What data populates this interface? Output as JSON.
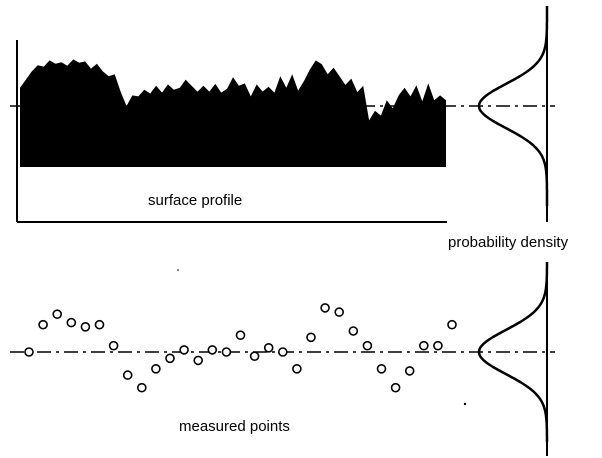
{
  "labels": {
    "surface_profile": "surface profile",
    "probability_density": "probability density",
    "measured_points": "measured points"
  },
  "colors": {
    "ink": "#000000",
    "paper": "#ffffff"
  },
  "profile": {
    "heights": [
      0.38,
      0.55,
      0.72,
      0.85,
      0.82,
      0.95,
      0.88,
      0.91,
      0.84,
      0.97,
      0.9,
      0.93,
      0.78,
      0.88,
      0.72,
      0.62,
      0.66,
      0.3,
      0.0,
      0.22,
      0.2,
      0.34,
      0.26,
      0.42,
      0.28,
      0.45,
      0.34,
      0.38,
      0.55,
      0.42,
      0.3,
      0.42,
      0.3,
      0.46,
      0.28,
      0.36,
      0.6,
      0.42,
      0.47,
      0.2,
      0.45,
      0.3,
      0.4,
      0.28,
      0.62,
      0.38,
      0.66,
      0.32,
      0.52,
      0.76,
      0.95,
      0.87,
      0.66,
      0.8,
      0.62,
      0.44,
      0.57,
      0.29,
      0.42,
      -0.3,
      -0.1,
      -0.2,
      0.12,
      -0.05,
      0.22,
      0.38,
      0.2,
      0.43,
      0.1,
      0.47,
      0.12,
      0.22,
      0.12
    ]
  },
  "points": {
    "values": [
      0.0,
      1.3,
      1.8,
      1.4,
      1.2,
      1.3,
      0.3,
      -1.1,
      -1.7,
      -0.8,
      -0.3,
      0.1,
      -0.4,
      0.1,
      0.0,
      0.8,
      -0.2,
      0.2,
      0.0,
      -0.8,
      0.7,
      2.1,
      1.9,
      1.0,
      0.3,
      -0.8,
      -1.7,
      -0.9,
      0.3,
      0.3,
      1.3
    ]
  }
}
